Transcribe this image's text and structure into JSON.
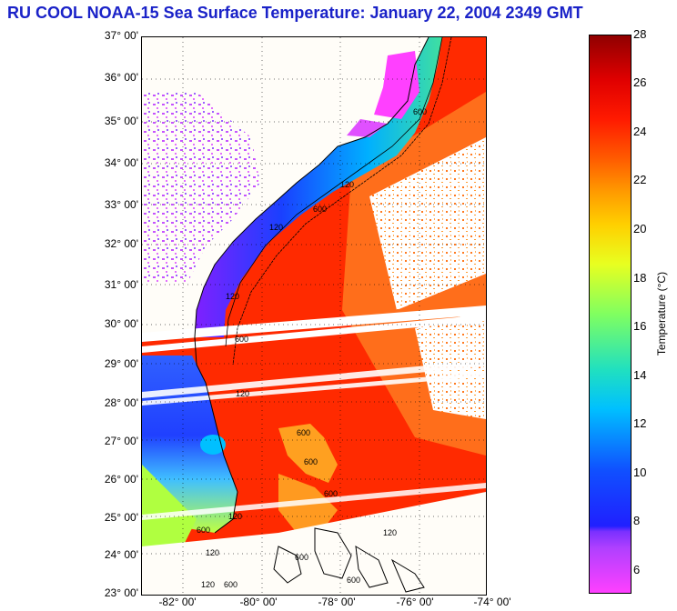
{
  "title": "RU COOL  NOAA-15  Sea Surface Temperature:  January 22, 2004 2349 GMT",
  "latitude_labels": [
    "37° 00'",
    "36° 00'",
    "35° 00'",
    "34° 00'",
    "33° 00'",
    "32° 00'",
    "31° 00'",
    "30° 00'",
    "29° 00'",
    "28° 00'",
    "27° 00'",
    "26° 00'",
    "25° 00'",
    "24° 00'",
    "23° 00'"
  ],
  "longitude_labels": [
    "-82° 00'",
    "-80° 00'",
    "-78° 00'",
    "-76° 00'",
    "-74° 00'"
  ],
  "contour_labels": [
    "600",
    "120",
    "600",
    "120",
    "120",
    "600",
    "120",
    "600",
    "600",
    "600",
    "120",
    "600",
    "120",
    "600",
    "120",
    "600",
    "120",
    "600"
  ],
  "colorbar": {
    "ticks": [
      "28",
      "26",
      "24",
      "22",
      "20",
      "18",
      "16",
      "14",
      "12",
      "10",
      "8",
      "6"
    ],
    "label": "Temperature (°C)",
    "min": 5,
    "max": 28
  },
  "colors": {
    "title": "#1a22c8",
    "gulf_stream": "#ff2a00",
    "shelf_cold": "#1a40ff",
    "land": "#fffdf8"
  }
}
